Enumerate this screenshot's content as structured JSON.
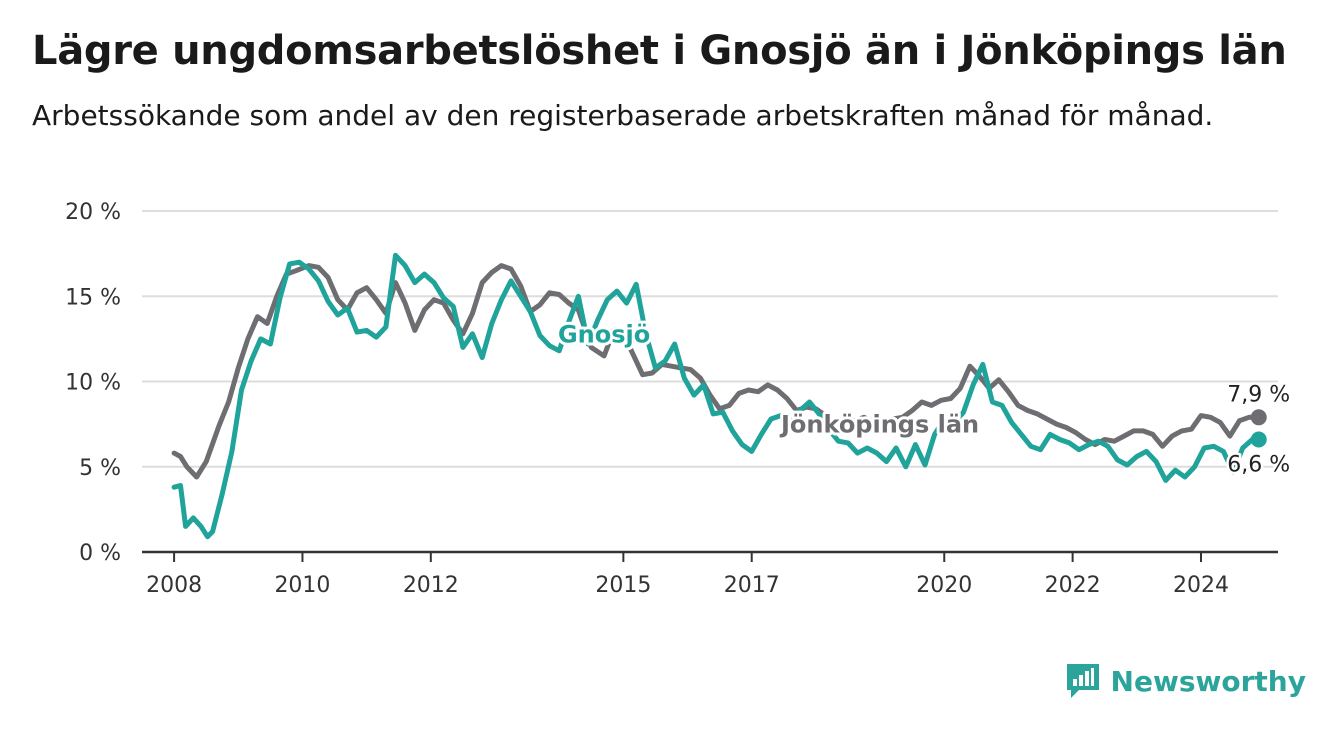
{
  "title": "Lägre ungdomsarbetslöshet i Gnosjö än i Jönköpings län",
  "subtitle": "Arbetssökande som andel av den registerbaserade arbetskraften månad för månad.",
  "brand": {
    "name": "Newsworthy",
    "icon": "newsworthy-logo-icon",
    "color": "#2ba59b"
  },
  "chart_data": {
    "type": "line",
    "x_ticks": [
      "2008",
      "2010",
      "2012",
      "2015",
      "2017",
      "2020",
      "2022",
      "2024"
    ],
    "y_ticks": [
      "0 %",
      "5 %",
      "10 %",
      "15 %",
      "20 %"
    ],
    "ylim": [
      0,
      20
    ],
    "xlim": [
      2007.5,
      2025.2
    ],
    "grid": true,
    "series": [
      {
        "name": "Jönköpings län",
        "color": "#6e6d72",
        "end_label": "7,9 %",
        "points": [
          [
            2008.0,
            5.8
          ],
          [
            2008.1,
            5.6
          ],
          [
            2008.2,
            5.0
          ],
          [
            2008.35,
            4.4
          ],
          [
            2008.5,
            5.3
          ],
          [
            2008.7,
            7.4
          ],
          [
            2008.85,
            8.8
          ],
          [
            2009.0,
            10.8
          ],
          [
            2009.15,
            12.5
          ],
          [
            2009.3,
            13.8
          ],
          [
            2009.45,
            13.4
          ],
          [
            2009.6,
            15.0
          ],
          [
            2009.75,
            16.3
          ],
          [
            2009.9,
            16.5
          ],
          [
            2010.1,
            16.8
          ],
          [
            2010.25,
            16.7
          ],
          [
            2010.4,
            16.1
          ],
          [
            2010.55,
            14.8
          ],
          [
            2010.7,
            14.2
          ],
          [
            2010.85,
            15.2
          ],
          [
            2011.0,
            15.5
          ],
          [
            2011.15,
            14.8
          ],
          [
            2011.3,
            14.0
          ],
          [
            2011.45,
            15.8
          ],
          [
            2011.6,
            14.6
          ],
          [
            2011.75,
            13.0
          ],
          [
            2011.9,
            14.2
          ],
          [
            2012.05,
            14.8
          ],
          [
            2012.2,
            14.6
          ],
          [
            2012.35,
            13.6
          ],
          [
            2012.5,
            12.8
          ],
          [
            2012.65,
            14.0
          ],
          [
            2012.8,
            15.8
          ],
          [
            2012.95,
            16.4
          ],
          [
            2013.1,
            16.8
          ],
          [
            2013.25,
            16.6
          ],
          [
            2013.4,
            15.6
          ],
          [
            2013.55,
            14.1
          ],
          [
            2013.7,
            14.5
          ],
          [
            2013.85,
            15.2
          ],
          [
            2014.0,
            15.1
          ],
          [
            2014.15,
            14.6
          ],
          [
            2014.3,
            14.2
          ],
          [
            2014.5,
            12.0
          ],
          [
            2014.7,
            11.5
          ],
          [
            2014.85,
            13.0
          ],
          [
            2015.0,
            12.8
          ],
          [
            2015.15,
            11.6
          ],
          [
            2015.3,
            10.4
          ],
          [
            2015.45,
            10.5
          ],
          [
            2015.6,
            11.0
          ],
          [
            2015.75,
            10.9
          ],
          [
            2015.9,
            10.8
          ],
          [
            2016.05,
            10.7
          ],
          [
            2016.2,
            10.2
          ],
          [
            2016.35,
            9.2
          ],
          [
            2016.5,
            8.4
          ],
          [
            2016.65,
            8.6
          ],
          [
            2016.8,
            9.3
          ],
          [
            2016.95,
            9.5
          ],
          [
            2017.1,
            9.4
          ],
          [
            2017.25,
            9.8
          ],
          [
            2017.4,
            9.5
          ],
          [
            2017.55,
            9.0
          ],
          [
            2017.7,
            8.3
          ],
          [
            2017.85,
            8.5
          ],
          [
            2018.0,
            8.4
          ],
          [
            2018.15,
            8.0
          ],
          [
            2018.3,
            7.6
          ],
          [
            2018.45,
            7.6
          ],
          [
            2018.6,
            7.7
          ],
          [
            2018.75,
            7.9
          ],
          [
            2018.9,
            7.6
          ],
          [
            2019.05,
            7.5
          ],
          [
            2019.2,
            7.8
          ],
          [
            2019.35,
            7.9
          ],
          [
            2019.5,
            8.3
          ],
          [
            2019.65,
            8.8
          ],
          [
            2019.8,
            8.6
          ],
          [
            2019.95,
            8.9
          ],
          [
            2020.1,
            9.0
          ],
          [
            2020.25,
            9.6
          ],
          [
            2020.4,
            10.9
          ],
          [
            2020.55,
            10.3
          ],
          [
            2020.7,
            9.6
          ],
          [
            2020.85,
            10.1
          ],
          [
            2021.0,
            9.4
          ],
          [
            2021.15,
            8.6
          ],
          [
            2021.3,
            8.3
          ],
          [
            2021.45,
            8.1
          ],
          [
            2021.6,
            7.8
          ],
          [
            2021.75,
            7.5
          ],
          [
            2021.9,
            7.3
          ],
          [
            2022.05,
            7.0
          ],
          [
            2022.2,
            6.6
          ],
          [
            2022.35,
            6.3
          ],
          [
            2022.5,
            6.6
          ],
          [
            2022.65,
            6.5
          ],
          [
            2022.8,
            6.8
          ],
          [
            2022.95,
            7.1
          ],
          [
            2023.1,
            7.1
          ],
          [
            2023.25,
            6.9
          ],
          [
            2023.4,
            6.2
          ],
          [
            2023.55,
            6.8
          ],
          [
            2023.7,
            7.1
          ],
          [
            2023.85,
            7.2
          ],
          [
            2024.0,
            8.0
          ],
          [
            2024.15,
            7.9
          ],
          [
            2024.3,
            7.6
          ],
          [
            2024.45,
            6.8
          ],
          [
            2024.6,
            7.7
          ],
          [
            2024.75,
            7.9
          ],
          [
            2024.9,
            7.9
          ]
        ]
      },
      {
        "name": "Gnosjö",
        "color": "#1fa39a",
        "end_label": "6,6 %",
        "points": [
          [
            2008.0,
            3.8
          ],
          [
            2008.1,
            3.9
          ],
          [
            2008.18,
            1.5
          ],
          [
            2008.3,
            2.0
          ],
          [
            2008.42,
            1.5
          ],
          [
            2008.52,
            0.9
          ],
          [
            2008.6,
            1.2
          ],
          [
            2008.75,
            3.4
          ],
          [
            2008.9,
            5.9
          ],
          [
            2009.05,
            9.5
          ],
          [
            2009.2,
            11.2
          ],
          [
            2009.35,
            12.5
          ],
          [
            2009.5,
            12.2
          ],
          [
            2009.65,
            14.9
          ],
          [
            2009.8,
            16.9
          ],
          [
            2009.95,
            17.0
          ],
          [
            2010.1,
            16.6
          ],
          [
            2010.25,
            15.9
          ],
          [
            2010.4,
            14.7
          ],
          [
            2010.55,
            13.9
          ],
          [
            2010.7,
            14.3
          ],
          [
            2010.85,
            12.9
          ],
          [
            2011.0,
            13.0
          ],
          [
            2011.15,
            12.6
          ],
          [
            2011.3,
            13.2
          ],
          [
            2011.45,
            17.4
          ],
          [
            2011.6,
            16.8
          ],
          [
            2011.75,
            15.8
          ],
          [
            2011.9,
            16.3
          ],
          [
            2012.05,
            15.8
          ],
          [
            2012.2,
            14.9
          ],
          [
            2012.35,
            14.4
          ],
          [
            2012.5,
            12.0
          ],
          [
            2012.65,
            12.8
          ],
          [
            2012.8,
            11.4
          ],
          [
            2012.95,
            13.4
          ],
          [
            2013.1,
            14.8
          ],
          [
            2013.25,
            15.9
          ],
          [
            2013.4,
            15.0
          ],
          [
            2013.55,
            14.1
          ],
          [
            2013.7,
            12.7
          ],
          [
            2013.85,
            12.1
          ],
          [
            2014.0,
            11.8
          ],
          [
            2014.15,
            13.5
          ],
          [
            2014.3,
            15.0
          ],
          [
            2014.45,
            12.2
          ],
          [
            2014.6,
            13.6
          ],
          [
            2014.75,
            14.8
          ],
          [
            2014.9,
            15.3
          ],
          [
            2015.05,
            14.6
          ],
          [
            2015.2,
            15.7
          ],
          [
            2015.35,
            12.8
          ],
          [
            2015.5,
            10.8
          ],
          [
            2015.65,
            11.2
          ],
          [
            2015.8,
            12.2
          ],
          [
            2015.95,
            10.2
          ],
          [
            2016.1,
            9.2
          ],
          [
            2016.25,
            9.8
          ],
          [
            2016.4,
            8.1
          ],
          [
            2016.55,
            8.2
          ],
          [
            2016.7,
            7.1
          ],
          [
            2016.85,
            6.3
          ],
          [
            2017.0,
            5.9
          ],
          [
            2017.15,
            6.9
          ],
          [
            2017.3,
            7.8
          ],
          [
            2017.45,
            8.0
          ],
          [
            2017.6,
            7.5
          ],
          [
            2017.75,
            8.3
          ],
          [
            2017.9,
            8.8
          ],
          [
            2018.05,
            8.1
          ],
          [
            2018.2,
            7.2
          ],
          [
            2018.35,
            6.5
          ],
          [
            2018.5,
            6.4
          ],
          [
            2018.65,
            5.8
          ],
          [
            2018.8,
            6.1
          ],
          [
            2018.95,
            5.8
          ],
          [
            2019.1,
            5.3
          ],
          [
            2019.25,
            6.1
          ],
          [
            2019.4,
            5.0
          ],
          [
            2019.55,
            6.3
          ],
          [
            2019.7,
            5.1
          ],
          [
            2019.85,
            6.9
          ],
          [
            2020.0,
            7.8
          ],
          [
            2020.15,
            7.5
          ],
          [
            2020.3,
            8.2
          ],
          [
            2020.45,
            9.8
          ],
          [
            2020.6,
            11.0
          ],
          [
            2020.75,
            8.8
          ],
          [
            2020.9,
            8.6
          ],
          [
            2021.05,
            7.6
          ],
          [
            2021.2,
            6.9
          ],
          [
            2021.35,
            6.2
          ],
          [
            2021.5,
            6.0
          ],
          [
            2021.65,
            6.9
          ],
          [
            2021.8,
            6.6
          ],
          [
            2021.95,
            6.4
          ],
          [
            2022.1,
            6.0
          ],
          [
            2022.25,
            6.3
          ],
          [
            2022.4,
            6.5
          ],
          [
            2022.55,
            6.2
          ],
          [
            2022.7,
            5.4
          ],
          [
            2022.85,
            5.1
          ],
          [
            2023.0,
            5.6
          ],
          [
            2023.15,
            5.9
          ],
          [
            2023.3,
            5.3
          ],
          [
            2023.45,
            4.2
          ],
          [
            2023.6,
            4.8
          ],
          [
            2023.75,
            4.4
          ],
          [
            2023.9,
            5.0
          ],
          [
            2024.05,
            6.1
          ],
          [
            2024.2,
            6.2
          ],
          [
            2024.35,
            5.9
          ],
          [
            2024.5,
            4.7
          ],
          [
            2024.65,
            6.1
          ],
          [
            2024.8,
            6.6
          ],
          [
            2024.9,
            6.6
          ]
        ]
      }
    ],
    "series_label_positions": {
      "Gnosjö": [
        2014.7,
        12.3
      ],
      "Jönköpings län": [
        2019.0,
        7.0
      ]
    }
  }
}
